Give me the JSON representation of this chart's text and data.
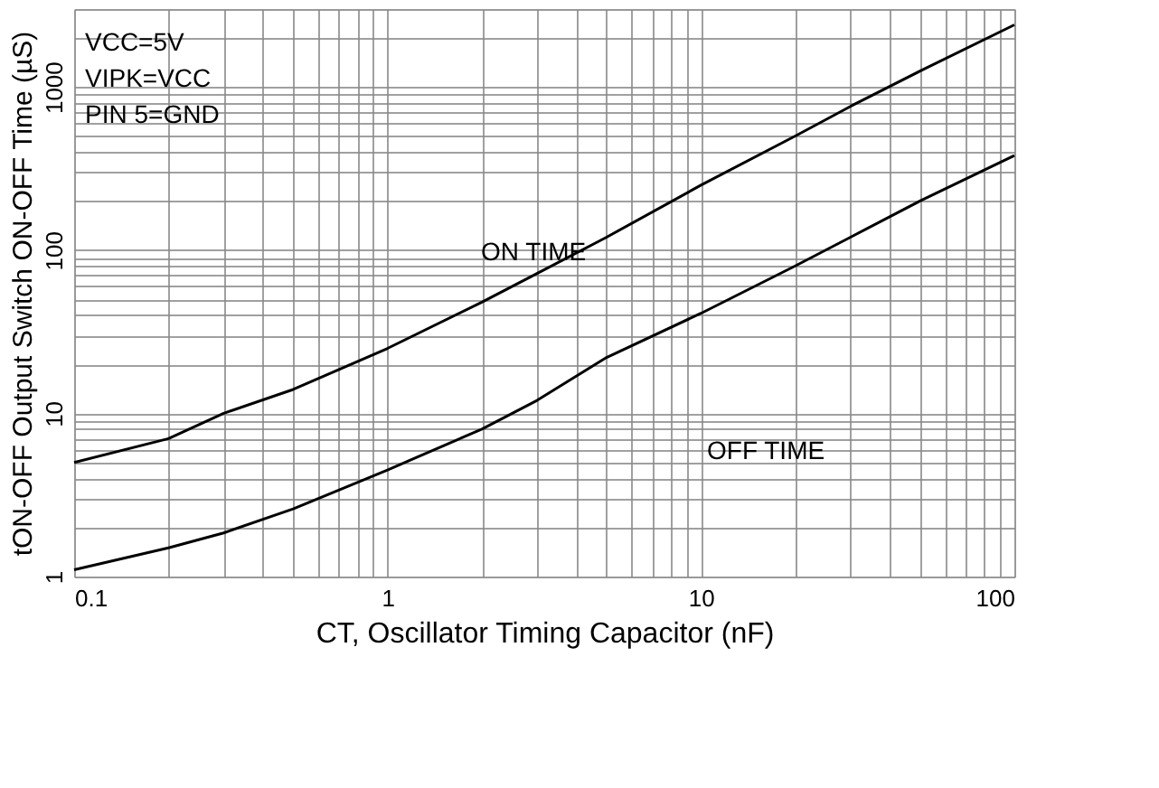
{
  "chart_data": {
    "type": "line",
    "xlabel": "CT, Oscillator Timing Capacitor (nF)",
    "ylabel": "tON-OFF Output Switch ON-OFF Time (µS)",
    "log": "xy",
    "grid": true,
    "line_style": "solid",
    "marker": "none",
    "xlim": [
      0.1,
      100
    ],
    "ylim": [
      1,
      3000
    ],
    "xticks": [
      0.1,
      {
        "value": 0.2,
        "label": null
      },
      {
        "value": 0.3,
        "label": null
      },
      {
        "value": 0.4,
        "label": null
      },
      {
        "value": 0.5,
        "label": null
      },
      {
        "value": 0.6,
        "label": null
      },
      {
        "value": 0.7,
        "label": null
      },
      {
        "value": 0.8,
        "label": null
      },
      {
        "value": 0.9,
        "label": null
      },
      1,
      {
        "value": 2,
        "label": null
      },
      {
        "value": 3,
        "label": null
      },
      {
        "value": 4,
        "label": null
      },
      {
        "value": 5,
        "label": null
      },
      {
        "value": 6,
        "label": null
      },
      {
        "value": 7,
        "label": null
      },
      {
        "value": 8,
        "label": null
      },
      {
        "value": 9,
        "label": null
      },
      10,
      {
        "value": 20,
        "label": null
      },
      {
        "value": 30,
        "label": null
      },
      {
        "value": 40,
        "label": null
      },
      {
        "value": 50,
        "label": null
      },
      {
        "value": 60,
        "label": null
      },
      {
        "value": 70,
        "label": null
      },
      {
        "value": 80,
        "label": null
      },
      {
        "value": 90,
        "label": null
      },
      100
    ],
    "yticks": [
      1,
      {
        "value": 2,
        "label": null
      },
      {
        "value": 3,
        "label": null
      },
      {
        "value": 4,
        "label": null
      },
      {
        "value": 5,
        "label": null
      },
      {
        "value": 6,
        "label": null
      },
      {
        "value": 7,
        "label": null
      },
      {
        "value": 8,
        "label": null
      },
      {
        "value": 9,
        "label": null
      },
      10,
      {
        "value": 20,
        "label": null
      },
      {
        "value": 30,
        "label": null
      },
      {
        "value": 40,
        "label": null
      },
      {
        "value": 50,
        "label": null
      },
      {
        "value": 60,
        "label": null
      },
      {
        "value": 70,
        "label": null
      },
      {
        "value": 80,
        "label": null
      },
      {
        "value": 90,
        "label": null
      },
      100,
      {
        "value": 200,
        "label": null
      },
      {
        "value": 300,
        "label": null
      },
      {
        "value": 400,
        "label": null
      },
      {
        "value": 500,
        "label": null
      },
      {
        "value": 600,
        "label": null
      },
      {
        "value": 700,
        "label": null
      },
      {
        "value": 800,
        "label": null
      },
      {
        "value": 900,
        "label": null
      },
      1000,
      {
        "value": 2000,
        "label": null
      },
      {
        "value": 3000,
        "label": null
      }
    ],
    "x": [
      0.1,
      0.2,
      0.3,
      0.5,
      1,
      2,
      3,
      5,
      10,
      20,
      30,
      50,
      100
    ],
    "series": [
      {
        "color": "#000000",
        "values": [
          5,
          7,
          10,
          14,
          25,
          48,
          72,
          120,
          250,
          500,
          760,
          1250,
          2400
        ]
      },
      {
        "color": "#000000",
        "values": [
          1.1,
          1.5,
          1.85,
          2.6,
          4.5,
          8,
          12,
          22,
          41,
          80,
          120,
          200,
          380
        ]
      }
    ],
    "annotations": [
      "VCC=5V",
      "VIPK=VCC",
      "PIN  5=GND",
      "ON TIME",
      "OFF TIME"
    ]
  }
}
